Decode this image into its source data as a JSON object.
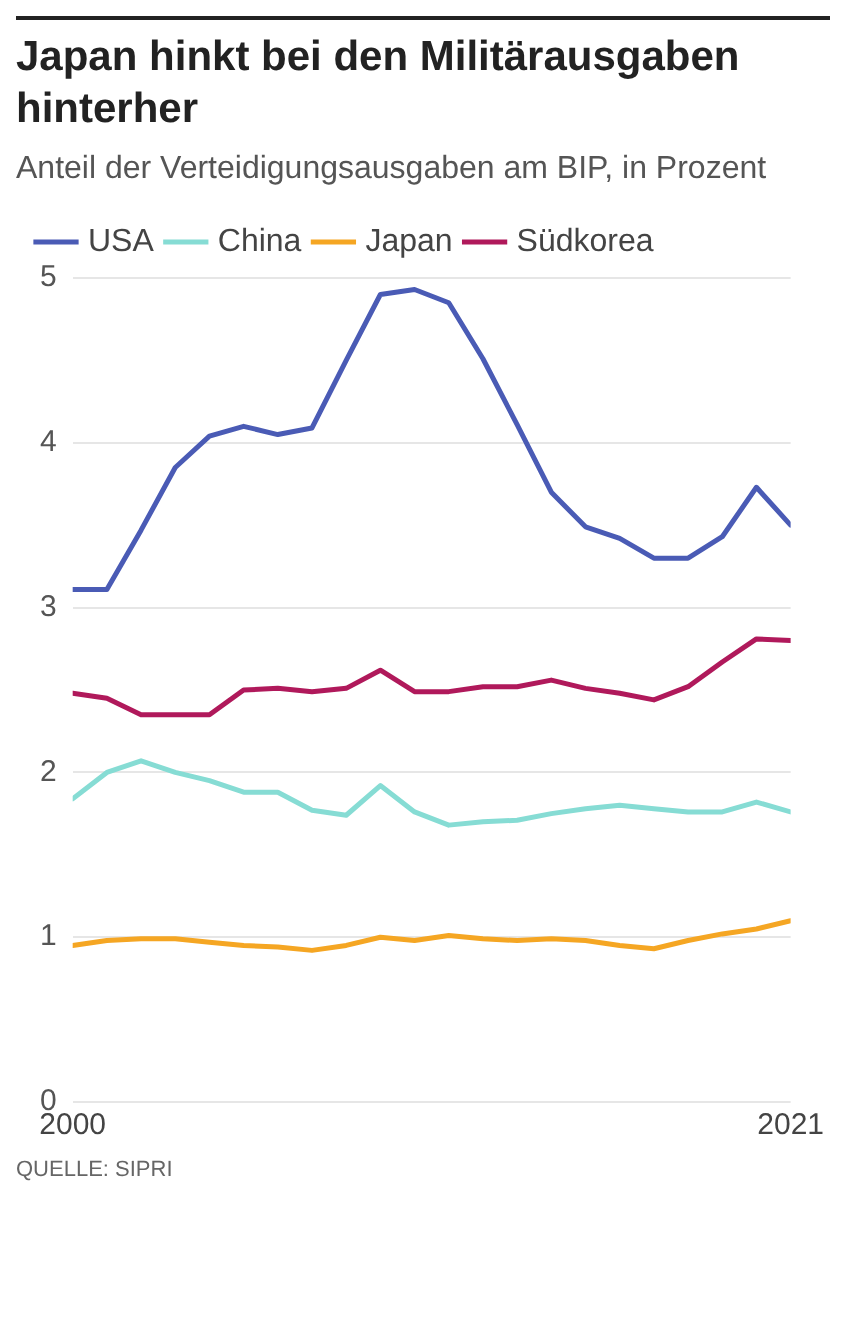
{
  "chart_data": {
    "type": "line",
    "title": "Japan hinkt bei den Militärausgaben hinterher",
    "subtitle": "Anteil der Verteidigungsausgaben am BIP, in Prozent",
    "x": [
      2000,
      2001,
      2002,
      2003,
      2004,
      2005,
      2006,
      2007,
      2008,
      2009,
      2010,
      2011,
      2012,
      2013,
      2014,
      2015,
      2016,
      2017,
      2018,
      2019,
      2020,
      2021
    ],
    "series": [
      {
        "name": "USA",
        "color": "#4a5bb5",
        "values": [
          3.11,
          3.11,
          3.47,
          3.85,
          4.04,
          4.1,
          4.05,
          4.09,
          4.5,
          4.9,
          4.93,
          4.85,
          4.51,
          4.11,
          3.7,
          3.49,
          3.42,
          3.3,
          3.3,
          3.43,
          3.73,
          3.5
        ]
      },
      {
        "name": "China",
        "color": "#86dcd4",
        "values": [
          1.84,
          2.0,
          2.07,
          2.0,
          1.95,
          1.88,
          1.88,
          1.77,
          1.74,
          1.92,
          1.76,
          1.68,
          1.7,
          1.71,
          1.75,
          1.78,
          1.8,
          1.78,
          1.76,
          1.76,
          1.82,
          1.76
        ]
      },
      {
        "name": "Japan",
        "color": "#f5a623",
        "values": [
          0.95,
          0.98,
          0.99,
          0.99,
          0.97,
          0.95,
          0.94,
          0.92,
          0.95,
          1.0,
          0.98,
          1.01,
          0.99,
          0.98,
          0.99,
          0.98,
          0.95,
          0.93,
          0.98,
          1.02,
          1.05,
          1.1
        ]
      },
      {
        "name": "Südkorea",
        "color": "#b0195b",
        "values": [
          2.48,
          2.45,
          2.35,
          2.35,
          2.35,
          2.5,
          2.51,
          2.49,
          2.51,
          2.62,
          2.49,
          2.49,
          2.52,
          2.52,
          2.56,
          2.51,
          2.48,
          2.44,
          2.52,
          2.67,
          2.81,
          2.8
        ]
      }
    ],
    "xlim": [
      2000,
      2021
    ],
    "xticks": [
      2000,
      2021
    ],
    "ylim": [
      0,
      5
    ],
    "yticks": [
      0,
      1,
      2,
      3,
      4,
      5
    ],
    "grid": "y",
    "legend": "top left",
    "marker": "none",
    "line_style": "solid",
    "annotations": [
      "QUELLE: SIPRI"
    ]
  }
}
